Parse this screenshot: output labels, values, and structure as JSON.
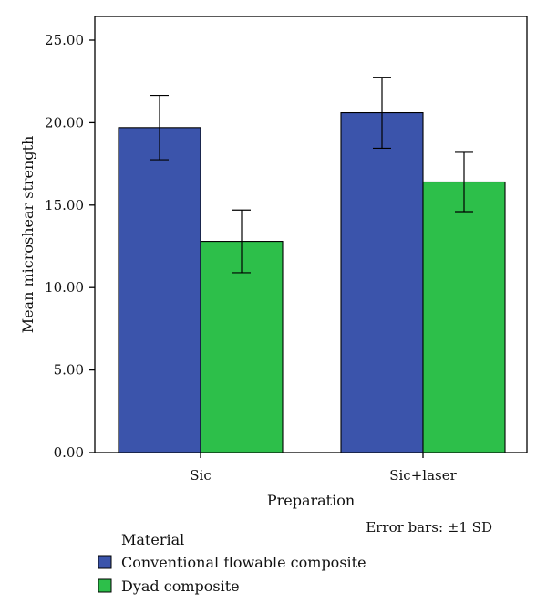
{
  "chart_data": {
    "type": "bar",
    "categories": [
      "Sic",
      "Sic+laser"
    ],
    "series": [
      {
        "name": "Conventional flowable composite",
        "values": [
          19.7,
          20.6
        ],
        "sd": [
          1.95,
          2.15
        ],
        "color": "#3b54ab"
      },
      {
        "name": "Dyad composite",
        "values": [
          12.8,
          16.4
        ],
        "sd": [
          1.9,
          1.8
        ],
        "color": "#2dbf4a"
      }
    ],
    "xlabel": "Preparation",
    "ylabel": "Mean microshear strength",
    "ylim": [
      0,
      25
    ],
    "yticks": [
      "0.00",
      "5.00",
      "10.00",
      "15.00",
      "20.00",
      "25.00"
    ],
    "error_note": "Error bars: ±1 SD",
    "legend_title": "Material",
    "legend_position": "bottom-left",
    "grid": false
  }
}
